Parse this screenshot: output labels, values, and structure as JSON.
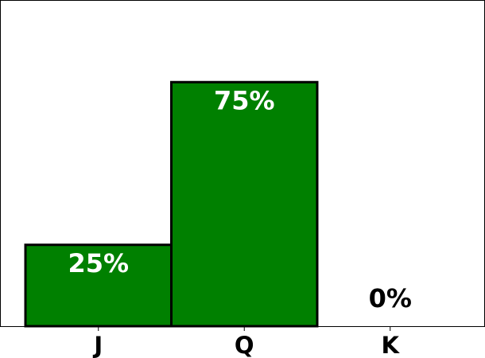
{
  "chart_data": {
    "type": "bar",
    "categories": [
      "J",
      "Q",
      "K"
    ],
    "values": [
      25,
      75,
      0
    ],
    "value_labels": [
      "25%",
      "75%",
      "0%"
    ],
    "ylim": [
      0,
      100
    ],
    "grid": false,
    "colors": {
      "bar_fill": "#008000",
      "bar_edge": "#000000",
      "label_inside": "#ffffff",
      "label_outside": "#000000"
    }
  }
}
